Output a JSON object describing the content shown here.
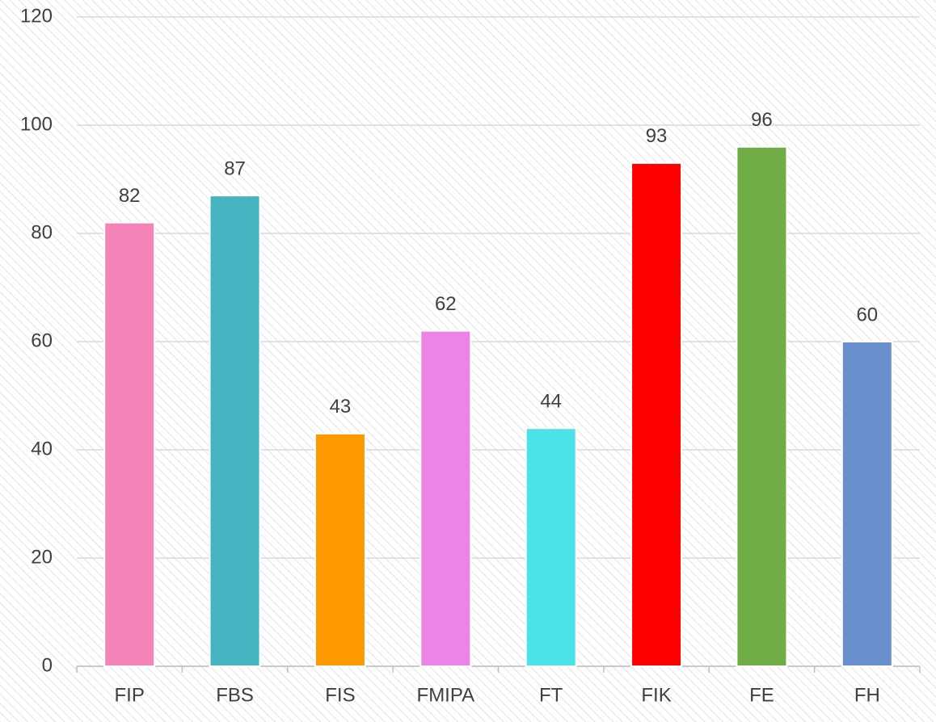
{
  "chart_data": {
    "type": "bar",
    "categories": [
      "FIP",
      "FBS",
      "FIS",
      "FMIPA",
      "FT",
      "FIK",
      "FE",
      "FH"
    ],
    "values": [
      82,
      87,
      43,
      62,
      44,
      93,
      96,
      60
    ],
    "colors": [
      "#f483b8",
      "#45b3c0",
      "#ff9900",
      "#ec84e6",
      "#4ce3e8",
      "#ff0000",
      "#70ad47",
      "#698fcf"
    ],
    "ylim": [
      0,
      120
    ],
    "yticks": [
      0,
      20,
      40,
      60,
      80,
      100,
      120
    ],
    "grid": true,
    "data_labels": true
  }
}
